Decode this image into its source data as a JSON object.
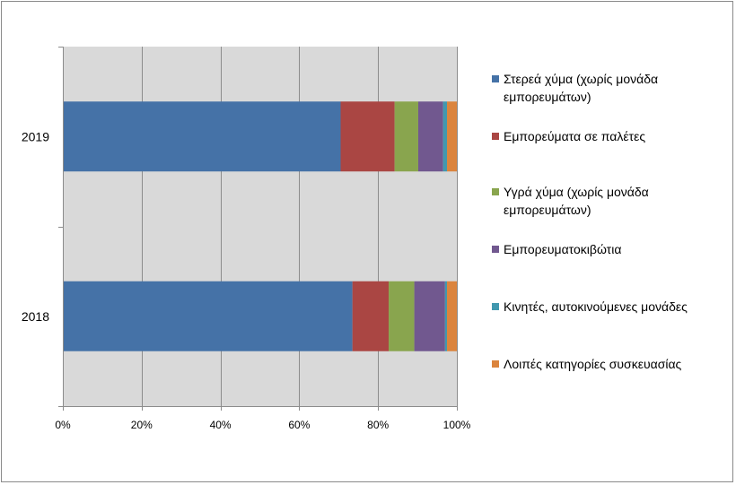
{
  "chart_data": {
    "type": "bar",
    "orientation": "horizontal",
    "stacked": "percent",
    "categories": [
      "2018",
      "2019"
    ],
    "series": [
      {
        "name": "Στερεά χύμα (χωρίς μονάδα εμπορευμάτων)",
        "color": "#4572A7",
        "values": [
          73.5,
          70.5
        ]
      },
      {
        "name": "Εμπορεύματα σε παλέτες",
        "color": "#AA4643",
        "values": [
          9.2,
          13.7
        ]
      },
      {
        "name": "Υγρά χύμα (χωρίς μονάδα εμπορευμάτων)",
        "color": "#89A54E",
        "values": [
          6.5,
          6.0
        ]
      },
      {
        "name": "Εμπορευματοκιβώτια",
        "color": "#71588F",
        "values": [
          7.8,
          6.3
        ]
      },
      {
        "name": "Κινητές, αυτοκινούμενες μονάδες",
        "color": "#4198AF",
        "values": [
          0.5,
          1.0
        ]
      },
      {
        "name": "Λοιπές κατηγορίες συσκευασίας",
        "color": "#DB843D",
        "values": [
          2.5,
          2.5
        ]
      }
    ],
    "xlim": [
      0,
      100
    ],
    "xticks": [
      "0%",
      "20%",
      "40%",
      "60%",
      "80%",
      "100%"
    ],
    "grid": true,
    "plot_background": "#D9D9D9",
    "legend_position": "right",
    "title": "",
    "xlabel": "",
    "ylabel": ""
  }
}
